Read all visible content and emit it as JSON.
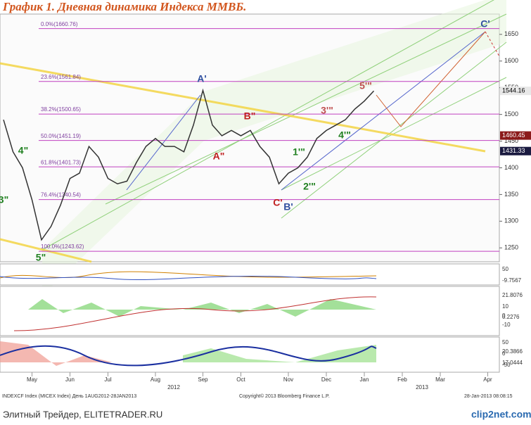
{
  "chart_data": {
    "type": "line",
    "title": "График 1.   Дневная динамика Индекса ММВБ.",
    "categories": [
      null,
      null,
      null,
      "May",
      null,
      null,
      null,
      "Jun",
      null,
      null,
      null,
      "Jul",
      null,
      null,
      null,
      null,
      "Aug",
      null,
      null,
      null,
      null,
      "Sep",
      null,
      null,
      null,
      "Oct",
      null,
      null,
      null,
      null,
      "Nov",
      null,
      null,
      null,
      "Dec",
      null,
      null,
      null,
      "Jan",
      null,
      null,
      null,
      "Feb",
      null,
      null,
      null,
      "Mar",
      null,
      null,
      null,
      null,
      "Apr"
    ],
    "series": [
      {
        "name": "INDEXCF Index",
        "color": "#333333",
        "values": [
          1490,
          1430,
          1400,
          1340,
          1265,
          1290,
          1330,
          1380,
          1390,
          1440,
          1420,
          1380,
          1370,
          1375,
          1410,
          1440,
          1455,
          1440,
          1440,
          1430,
          1480,
          1545,
          1480,
          1460,
          1470,
          1460,
          1470,
          1440,
          1420,
          1370,
          1390,
          1400,
          1420,
          1455,
          1470,
          1480,
          1490,
          1510,
          1525,
          1544,
          null,
          null,
          null,
          null,
          null,
          null,
          null,
          null,
          null,
          null,
          null,
          null
        ]
      }
    ],
    "ylim": [
      1224,
      1688
    ],
    "yticks": [
      1250,
      1300,
      1350,
      1400,
      1450,
      1500,
      1550,
      1600,
      1650
    ],
    "years": [
      "2012",
      "2013"
    ],
    "levels": [
      {
        "text": "0.0%(1660.76)",
        "value": 1660.76
      },
      {
        "text": "23.6%(1561.84)",
        "value": 1561.84
      },
      {
        "text": "38.2%(1500.65)",
        "value": 1500.65
      },
      {
        "text": "50.0%(1451.19)",
        "value": 1451.19
      },
      {
        "text": "61.8%(1401.73)",
        "value": 1401.73
      },
      {
        "text": "76.4%(1340.54)",
        "value": 1340.54
      },
      {
        "text": "100.0%(1243.62)",
        "value": 1243.62
      }
    ],
    "price_labels": [
      {
        "value": 1544.16,
        "color": "#e8e8e8"
      },
      {
        "value": 1460.45,
        "color": "#8b1a1a"
      },
      {
        "value": 1431.33,
        "color": "#1a1a40"
      }
    ],
    "wave_labels": [
      "A'",
      "B\"",
      "A\"",
      "C'",
      "B'",
      "C'",
      "5\"",
      "4\"",
      "3\"",
      "5'\"",
      "3'\"",
      "4'\"",
      "1'\"",
      "2'\""
    ],
    "panel_labels": [
      "50",
      "-9.7567",
      "21.8076",
      "10",
      "0",
      "-10",
      "0.2276",
      "50",
      "0",
      "-50",
      "20.3866",
      "17.0444"
    ],
    "footer": {
      "source": "INDEXCF Index (MICEX Index) День 1AUG2012-28JAN2013",
      "copyright": "Copyright© 2013 Bloomberg Finance L.P.",
      "date": "28-Jan-2013 08:08:15",
      "site": "Элитный Трейдер, ELITETRADER.RU",
      "logo": "clip2net.com"
    }
  }
}
